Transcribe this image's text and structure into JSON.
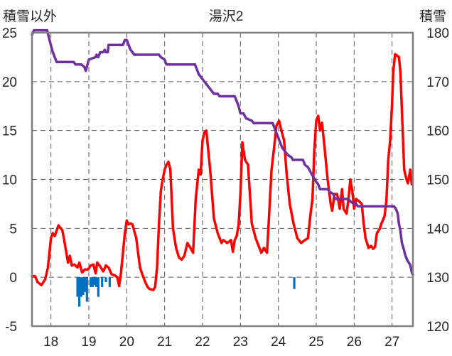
{
  "chart_data": {
    "type": "line",
    "title": "湯沢2",
    "ylabel_left": "積雪以外",
    "ylabel_right": "積雪",
    "grid": true,
    "x_ticks": [
      "18",
      "19",
      "20",
      "21",
      "22",
      "23",
      "24",
      "25",
      "26",
      "27"
    ],
    "xlim": [
      17.5,
      27.55
    ],
    "ylim_left": [
      -5,
      25
    ],
    "ylim_right": [
      120,
      180
    ],
    "y_ticks_left": [
      "25",
      "20",
      "15",
      "10",
      "5",
      "0",
      "-5"
    ],
    "y_ticks_right": [
      "180",
      "170",
      "160",
      "150",
      "140",
      "130",
      "120"
    ],
    "series": [
      {
        "axis": "left",
        "color": "#ff0000",
        "style": "line",
        "x": [
          17.5,
          17.58,
          17.65,
          17.75,
          17.85,
          17.92,
          18.0,
          18.05,
          18.1,
          18.2,
          18.3,
          18.35,
          18.45,
          18.5,
          18.55,
          18.62,
          18.7,
          18.75,
          18.82,
          18.9,
          18.98,
          19.05,
          19.12,
          19.18,
          19.22,
          19.3,
          19.38,
          19.45,
          19.52,
          19.6,
          19.68,
          19.75,
          19.8,
          19.85,
          19.9,
          19.95,
          20.0,
          20.05,
          20.1,
          20.15,
          20.25,
          20.3,
          20.35,
          20.42,
          20.5,
          20.55,
          20.6,
          20.7,
          20.75,
          20.8,
          20.85,
          20.9,
          20.95,
          21.0,
          21.05,
          21.1,
          21.15,
          21.22,
          21.3,
          21.38,
          21.45,
          21.52,
          21.6,
          21.68,
          21.75,
          21.82,
          21.9,
          21.95,
          22.0,
          22.05,
          22.1,
          22.2,
          22.3,
          22.4,
          22.5,
          22.55,
          22.65,
          22.75,
          22.8,
          22.85,
          22.9,
          22.95,
          23.0,
          23.05,
          23.12,
          23.2,
          23.3,
          23.4,
          23.5,
          23.55,
          23.62,
          23.7,
          23.78,
          23.82,
          23.88,
          23.95,
          24.02,
          24.08,
          24.15,
          24.22,
          24.3,
          24.4,
          24.5,
          24.6,
          24.7,
          24.78,
          24.85,
          24.9,
          24.95,
          25.0,
          25.05,
          25.1,
          25.15,
          25.2,
          25.3,
          25.38,
          25.42,
          25.48,
          25.55,
          25.62,
          25.68,
          25.72,
          25.8,
          25.85,
          25.9,
          25.95,
          26.0,
          26.05,
          26.12,
          26.2,
          26.25,
          26.3,
          26.38,
          26.45,
          26.5,
          26.55,
          26.6,
          26.68,
          26.72,
          26.8,
          26.85,
          26.9,
          26.95,
          27.0,
          27.03,
          27.08,
          27.12,
          27.18,
          27.22,
          27.28,
          27.32,
          27.38,
          27.42,
          27.48,
          27.52
        ],
        "y": [
          0.1,
          0.1,
          -0.5,
          -0.8,
          -0.2,
          1.0,
          4.0,
          4.5,
          4.2,
          5.3,
          4.8,
          3.8,
          1.5,
          2.2,
          1.2,
          1.3,
          1.0,
          1.5,
          0.5,
          0.8,
          0.8,
          1.2,
          1.3,
          0.4,
          1.5,
          1.1,
          0.6,
          1.2,
          1.0,
          0.3,
          0.2,
          0.0,
          -0.9,
          0.5,
          2.5,
          4.5,
          5.8,
          5.4,
          5.5,
          5.4,
          4.0,
          2.5,
          1.0,
          0.2,
          -0.6,
          -1.0,
          -1.2,
          -1.3,
          -1.0,
          1.0,
          5.5,
          8.8,
          10.0,
          11.0,
          11.5,
          11.8,
          11.0,
          5.0,
          3.0,
          2.0,
          1.8,
          2.2,
          3.5,
          3.0,
          2.5,
          8.0,
          11.0,
          10.5,
          14.0,
          14.8,
          15.0,
          11.0,
          6.0,
          4.5,
          3.5,
          3.8,
          3.5,
          3.8,
          2.6,
          3.8,
          4.2,
          5.3,
          8.5,
          13.8,
          12.0,
          11.5,
          5.5,
          4.0,
          3.0,
          2.5,
          3.0,
          2.5,
          8.0,
          11.0,
          13.0,
          15.5,
          16.0,
          15.0,
          14.0,
          10.5,
          7.5,
          5.5,
          4.0,
          3.5,
          3.8,
          4.0,
          6.5,
          8.0,
          13.0,
          16.0,
          16.5,
          15.0,
          15.8,
          14.0,
          10.0,
          7.5,
          6.8,
          8.5,
          8.5,
          7.0,
          9.0,
          7.0,
          6.5,
          8.0,
          10.0,
          8.8,
          7.0,
          8.0,
          7.8,
          7.5,
          5.5,
          4.0,
          3.0,
          3.2,
          2.9,
          3.1,
          4.5,
          5.0,
          5.5,
          6.2,
          7.8,
          12.0,
          14.0,
          17.8,
          21.0,
          22.8,
          22.7,
          22.5,
          21.0,
          15.0,
          11.0,
          10.0,
          9.6,
          11.0,
          9.5
        ]
      },
      {
        "axis": "right",
        "color": "#7030a0",
        "style": "line",
        "x": [
          17.5,
          17.55,
          17.65,
          17.9,
          17.98,
          18.05,
          18.1,
          18.15,
          18.6,
          18.65,
          18.72,
          18.8,
          18.88,
          18.92,
          19.0,
          19.18,
          19.2,
          19.25,
          19.3,
          19.32,
          19.38,
          19.42,
          19.45,
          19.5,
          19.52,
          19.55,
          19.9,
          19.95,
          20.0,
          20.05,
          20.1,
          20.15,
          20.2,
          20.85,
          20.9,
          21.0,
          21.02,
          21.05,
          21.8,
          21.85,
          21.9,
          22.0,
          22.1,
          22.2,
          22.3,
          22.35,
          22.4,
          22.45,
          22.85,
          22.9,
          22.95,
          23.0,
          23.08,
          23.15,
          23.3,
          23.35,
          23.85,
          23.9,
          23.95,
          24.0,
          24.05,
          24.1,
          24.2,
          24.25,
          24.35,
          24.38,
          24.65,
          24.7,
          24.78,
          24.85,
          24.92,
          25.0,
          25.05,
          25.1,
          25.3,
          25.35,
          25.45,
          25.5,
          25.85,
          25.9,
          26.0,
          26.05,
          26.1,
          27.0,
          27.05,
          27.1,
          27.15,
          27.18,
          27.22,
          27.26,
          27.3,
          27.35,
          27.4,
          27.48,
          27.52,
          27.55
        ],
        "y": [
          179.5,
          180.5,
          180.5,
          180.5,
          178,
          176,
          175,
          174,
          174,
          173.5,
          173.5,
          173.5,
          173,
          172.2,
          174.5,
          175,
          175.5,
          175,
          176,
          176,
          176,
          176.5,
          176,
          176,
          177.5,
          177.5,
          177.5,
          178.5,
          178.5,
          177.5,
          176.5,
          176,
          175.5,
          175.5,
          175,
          174.5,
          174,
          173.5,
          173.5,
          172.5,
          171.5,
          170.5,
          169.5,
          168.5,
          167.5,
          167.5,
          167.5,
          167,
          167,
          166,
          165,
          163.5,
          163.5,
          162.5,
          162,
          161.5,
          161.5,
          160.5,
          159.5,
          158.5,
          157.5,
          156.5,
          155.5,
          155,
          154.5,
          154,
          154,
          153,
          152.5,
          151.5,
          150.5,
          149.5,
          149,
          148,
          148,
          147.5,
          147,
          146,
          146,
          145.5,
          145,
          145,
          144.5,
          144.5,
          144.5,
          144,
          143,
          141,
          139.5,
          137,
          136,
          134.5,
          133.5,
          132.5,
          131,
          130.5
        ]
      },
      {
        "axis": "left",
        "color": "#0070c0",
        "style": "bar",
        "x": [
          18.7,
          18.75,
          18.8,
          18.85,
          18.9,
          18.95,
          19.05,
          19.1,
          19.15,
          19.2,
          19.25,
          19.35,
          19.45,
          19.55,
          24.42
        ],
        "y": [
          -2.0,
          -3.0,
          -2.0,
          -1.8,
          -1.5,
          -2.5,
          -1.0,
          -1.0,
          -0.8,
          -1.0,
          -2.0,
          -1.0,
          -0.5,
          -1.0,
          -1.2
        ]
      }
    ]
  }
}
